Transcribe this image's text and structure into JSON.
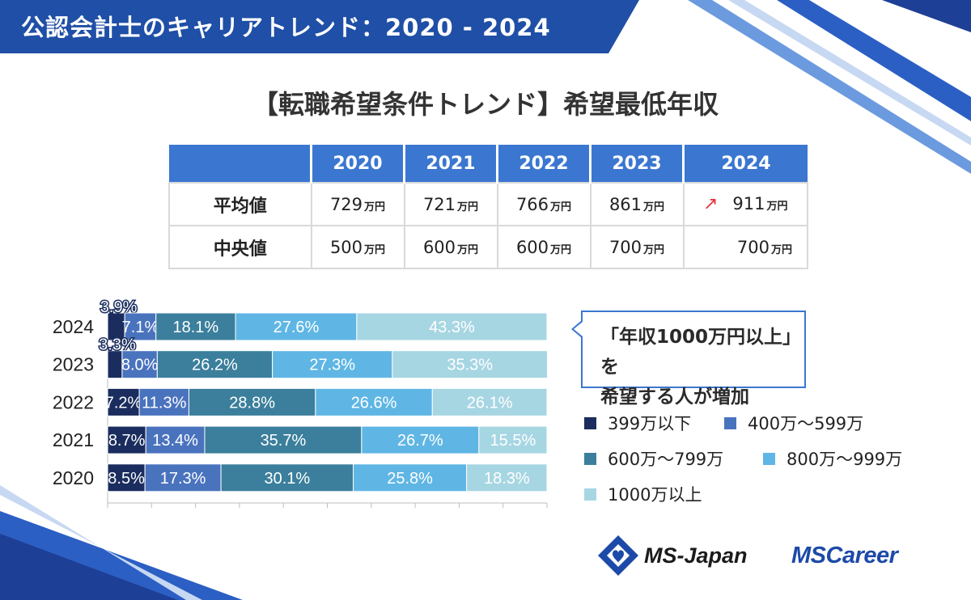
{
  "header": {
    "title": "公認会計士のキャリアトレンド：2020 - 2024",
    "subtitle": "【転職希望条件トレンド】希望最低年収"
  },
  "summary_table": {
    "years": [
      "2020",
      "2021",
      "2022",
      "2023",
      "2024"
    ],
    "unit": "万円",
    "rows": [
      {
        "label": "平均値",
        "values": [
          "729",
          "721",
          "766",
          "861",
          "911"
        ]
      },
      {
        "label": "中央値",
        "values": [
          "500",
          "600",
          "600",
          "700",
          "700"
        ]
      }
    ],
    "trend_arrow": "up-arrow-icon"
  },
  "callout": {
    "line1": "「年収1000万円以上」を",
    "line2": "希望する人が増加"
  },
  "chart_data": {
    "type": "bar",
    "orientation": "horizontal-stacked-100",
    "categories": [
      "2024",
      "2023",
      "2022",
      "2021",
      "2020"
    ],
    "series": [
      {
        "name": "399万以下",
        "color": "#1b2d5e",
        "values": [
          3.9,
          3.3,
          7.2,
          8.7,
          8.5
        ]
      },
      {
        "name": "400万～599万",
        "color": "#4a73be",
        "values": [
          7.1,
          8.0,
          11.3,
          13.4,
          17.3
        ]
      },
      {
        "name": "600万～799万",
        "color": "#3b7f9c",
        "values": [
          18.1,
          26.2,
          28.8,
          35.7,
          30.1
        ]
      },
      {
        "name": "800万～999万",
        "color": "#5fb6e4",
        "values": [
          27.6,
          27.3,
          26.6,
          26.7,
          25.8
        ]
      },
      {
        "name": "1000万以上",
        "color": "#a7d6e3",
        "values": [
          43.3,
          35.3,
          26.1,
          15.5,
          18.3
        ]
      }
    ],
    "value_suffix": "%",
    "xlim": [
      0,
      100
    ],
    "legend_position": "right"
  },
  "logos": {
    "ms_japan": "MS-Japan",
    "ms_career": "MSCareer"
  },
  "colors": {
    "header_blue": "#1f4fa6",
    "table_header": "#3b77d0",
    "accent_red": "#e3343b"
  }
}
